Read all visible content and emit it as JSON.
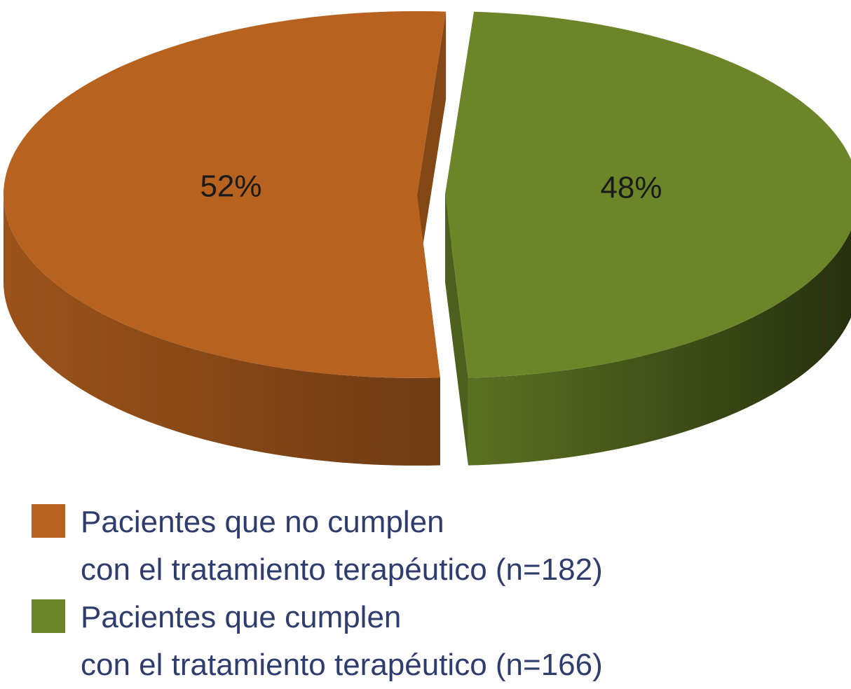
{
  "chart_data": {
    "type": "pie3d",
    "categories": [
      "Pacientes que no cumplen\ncon el tratamiento terapéutico (n=182)",
      "Pacientes que cumplen\ncon el tratamiento terapéutico (n=166)"
    ],
    "values": [
      52,
      48
    ],
    "value_labels": [
      "52%",
      "48%"
    ],
    "colors": [
      "#b8621f",
      "#6b8528"
    ],
    "legend": "bottom"
  }
}
